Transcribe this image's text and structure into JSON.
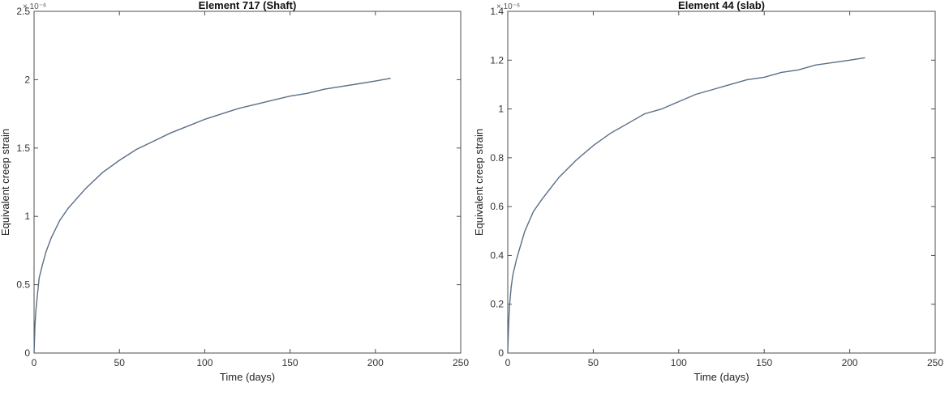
{
  "chart_data": [
    {
      "type": "line",
      "title": "Element 717 (Shaft)",
      "xlabel": "Time (days)",
      "ylabel": "Equivalent creep strain",
      "y_multiplier": "× 10⁻⁶",
      "xlim": [
        0,
        250
      ],
      "ylim": [
        0,
        2.5
      ],
      "xticks": [
        "0",
        "50",
        "100",
        "150",
        "200",
        "250"
      ],
      "yticks": [
        "0",
        "0.5",
        "1",
        "1.5",
        "2",
        "2.5"
      ],
      "grid": false,
      "series": [
        {
          "color": "#5a6f86",
          "x": [
            0,
            0.5,
            1,
            2,
            3,
            5,
            7,
            10,
            15,
            20,
            30,
            40,
            50,
            60,
            70,
            80,
            90,
            100,
            110,
            120,
            130,
            140,
            150,
            160,
            170,
            180,
            190,
            200,
            209
          ],
          "y": [
            0,
            0.2,
            0.3,
            0.43,
            0.55,
            0.65,
            0.74,
            0.84,
            0.97,
            1.06,
            1.2,
            1.32,
            1.41,
            1.49,
            1.55,
            1.61,
            1.66,
            1.71,
            1.75,
            1.79,
            1.82,
            1.85,
            1.88,
            1.9,
            1.93,
            1.95,
            1.97,
            1.99,
            2.01
          ]
        }
      ]
    },
    {
      "type": "line",
      "title": "Element 44 (slab)",
      "xlabel": "Time (days)",
      "ylabel": "Equivalent creep strain",
      "y_multiplier": "× 10⁻⁶",
      "xlim": [
        0,
        250
      ],
      "ylim": [
        0,
        1.4
      ],
      "xticks": [
        "0",
        "50",
        "100",
        "150",
        "200",
        "250"
      ],
      "yticks": [
        "0",
        "0.2",
        "0.4",
        "0.6",
        "0.8",
        "1",
        "1.2",
        "1.4"
      ],
      "grid": false,
      "series": [
        {
          "color": "#5a6f86",
          "x": [
            0,
            0.5,
            1,
            2,
            3,
            5,
            7,
            10,
            15,
            20,
            30,
            40,
            50,
            60,
            70,
            80,
            90,
            100,
            110,
            120,
            130,
            140,
            150,
            160,
            170,
            180,
            190,
            200,
            209
          ],
          "y": [
            0,
            0.12,
            0.19,
            0.27,
            0.32,
            0.38,
            0.43,
            0.5,
            0.58,
            0.63,
            0.72,
            0.79,
            0.85,
            0.9,
            0.94,
            0.98,
            1.0,
            1.03,
            1.06,
            1.08,
            1.1,
            1.12,
            1.13,
            1.15,
            1.16,
            1.18,
            1.19,
            1.2,
            1.21
          ]
        }
      ]
    }
  ]
}
